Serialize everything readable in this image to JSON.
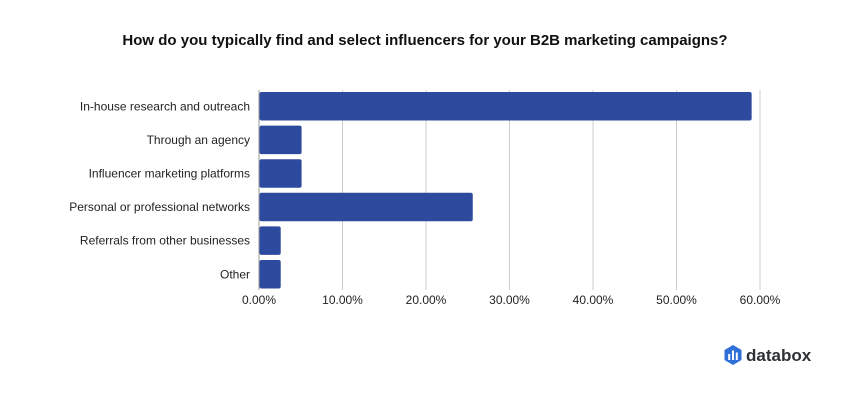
{
  "chart_data": {
    "type": "bar",
    "orientation": "horizontal",
    "title": "How do you typically find and select influencers for your B2B marketing campaigns?",
    "categories": [
      "In-house research and outreach",
      "Through an agency",
      "Influencer marketing platforms",
      "Personal or professional networks",
      "Referrals from other businesses",
      "Other"
    ],
    "values": [
      59.0,
      5.1,
      5.1,
      25.6,
      2.6,
      2.6
    ],
    "xlim": [
      0,
      60
    ],
    "x_ticks": [
      "0.00%",
      "10.00%",
      "20.00%",
      "30.00%",
      "40.00%",
      "50.00%",
      "60.00%"
    ],
    "grid": true,
    "bar_color": "#2e4a9e",
    "grid_color": "#cccccc"
  },
  "brand": {
    "name": "databox",
    "logo_color": "#2e6fd8"
  }
}
